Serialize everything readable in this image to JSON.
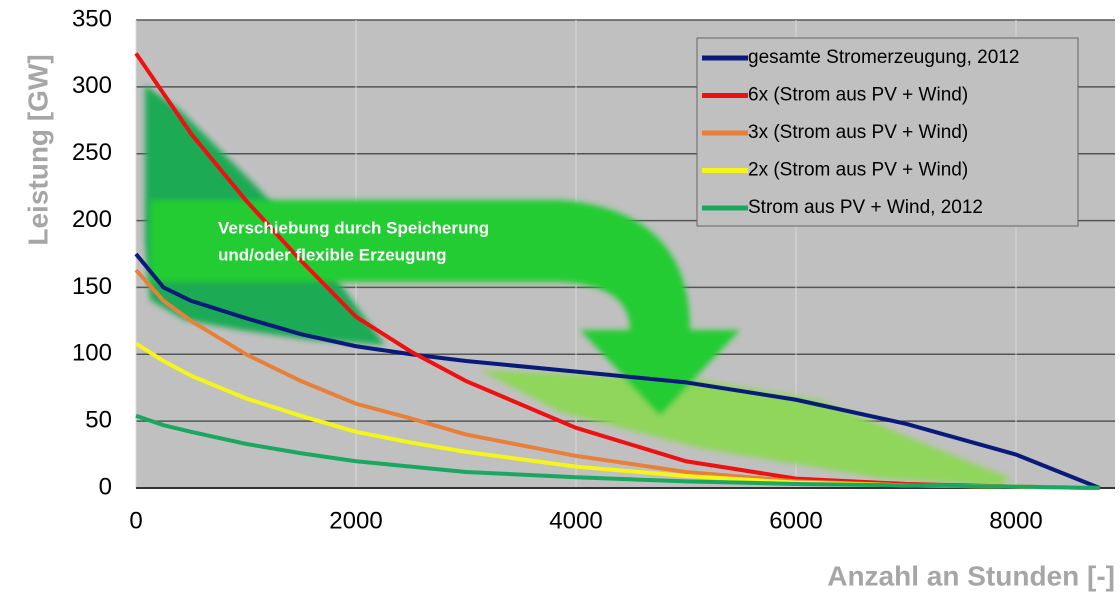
{
  "chart_data": {
    "type": "line",
    "x_label": "Anzahl an Stunden  [-]",
    "y_label": "Leistung  [GW]",
    "annotation": [
      "Verschiebung durch Speicherung",
      "und/oder flexible Erzeugung"
    ],
    "x": [
      0,
      250,
      500,
      1000,
      1500,
      2000,
      2500,
      3000,
      4000,
      5000,
      6000,
      7000,
      8000,
      8760
    ],
    "series": [
      {
        "name": "gesamte Stromerzeugung, 2012",
        "color": "#0a1a7a",
        "values": [
          175,
          150,
          140,
          127,
          115,
          106,
          100,
          95,
          87,
          79,
          66,
          48,
          25,
          0
        ]
      },
      {
        "name": "6x (Strom aus PV + Wind)",
        "color": "#ee1111",
        "values": [
          325,
          295,
          265,
          215,
          170,
          128,
          102,
          80,
          45,
          20,
          7,
          3,
          1,
          0
        ]
      },
      {
        "name": "3x (Strom aus PV + Wind)",
        "color": "#e8803a",
        "values": [
          163,
          140,
          125,
          100,
          80,
          63,
          52,
          40,
          24,
          12,
          5,
          2,
          1,
          0
        ]
      },
      {
        "name": "2x (Strom aus PV + Wind)",
        "color": "#f5f51a",
        "values": [
          108,
          95,
          84,
          67,
          54,
          42,
          34,
          27,
          16,
          9,
          4,
          2,
          1,
          0
        ]
      },
      {
        "name": "Strom aus PV + Wind, 2012",
        "color": "#1aa860",
        "values": [
          54,
          47,
          42,
          33,
          26,
          20,
          16,
          12,
          8,
          5,
          3,
          2,
          1,
          0
        ]
      }
    ],
    "xlim": [
      0,
      8900
    ],
    "xticks": [
      0,
      2000,
      4000,
      6000,
      8000
    ],
    "ylim": [
      0,
      350
    ],
    "yticks": [
      0,
      50,
      100,
      150,
      200,
      250,
      300,
      350
    ],
    "grid": true,
    "legend": "upper right",
    "background": "#c0c0c0"
  }
}
